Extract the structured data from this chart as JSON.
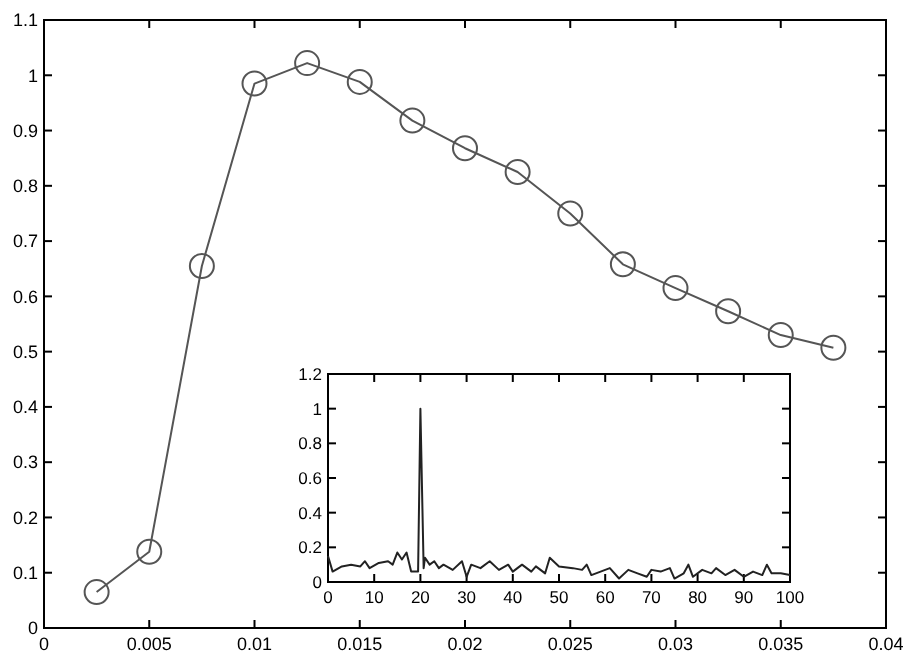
{
  "chart_data": [
    {
      "type": "line",
      "marker": "circle",
      "line_style": "solid",
      "grid": false,
      "xlim": [
        0,
        0.04
      ],
      "xticks": [
        0,
        0.005,
        0.01,
        0.015,
        0.02,
        0.025,
        0.03,
        0.035,
        0.04
      ],
      "ylim": [
        0,
        1.1
      ],
      "yticks": [
        0,
        0.1,
        0.2,
        0.3,
        0.4,
        0.5,
        0.6,
        0.7,
        0.8,
        0.9,
        1,
        1.1
      ],
      "series": [
        {
          "color": "#555555",
          "x": [
            0.0025,
            0.005,
            0.0075,
            0.01,
            0.0125,
            0.015,
            0.0175,
            0.02,
            0.0225,
            0.025,
            0.0275,
            0.03,
            0.0325,
            0.035,
            0.0375
          ],
          "values": [
            0.065,
            0.138,
            0.655,
            0.985,
            1.022,
            0.988,
            0.918,
            0.868,
            0.825,
            0.75,
            0.658,
            0.615,
            0.573,
            0.53,
            0.507
          ]
        }
      ]
    },
    {
      "type": "line",
      "marker": "none",
      "line_style": "solid",
      "grid": false,
      "xlim": [
        0,
        100
      ],
      "xticks": [
        0,
        10,
        20,
        30,
        40,
        50,
        60,
        70,
        80,
        90,
        100
      ],
      "ylim": [
        0,
        1.2
      ],
      "yticks": [
        0,
        0.2,
        0.4,
        0.6,
        0.8,
        1,
        1.2
      ],
      "series": [
        {
          "color": "#222222",
          "x": [
            0,
            1,
            3,
            5,
            7,
            8,
            9,
            11,
            13,
            14,
            15,
            16,
            17,
            18,
            19,
            19.5,
            20,
            20.7,
            21,
            22,
            23,
            24,
            25,
            27,
            29,
            30,
            31,
            33,
            35,
            37,
            39,
            40,
            42,
            44,
            45,
            47,
            48,
            50,
            53,
            55,
            56,
            57,
            59,
            61,
            63,
            65,
            67,
            69,
            70,
            72,
            74,
            75,
            77,
            78,
            79,
            81,
            83,
            84,
            86,
            88,
            90,
            92,
            94,
            95,
            96,
            98,
            100
          ],
          "values": [
            0.15,
            0.06,
            0.09,
            0.1,
            0.09,
            0.12,
            0.08,
            0.11,
            0.12,
            0.1,
            0.17,
            0.13,
            0.17,
            0.06,
            0.06,
            0.06,
            1.0,
            0.08,
            0.14,
            0.1,
            0.12,
            0.08,
            0.1,
            0.07,
            0.12,
            0.03,
            0.1,
            0.08,
            0.12,
            0.07,
            0.1,
            0.06,
            0.1,
            0.06,
            0.09,
            0.05,
            0.14,
            0.09,
            0.08,
            0.07,
            0.1,
            0.04,
            0.06,
            0.08,
            0.02,
            0.07,
            0.05,
            0.03,
            0.07,
            0.06,
            0.08,
            0.02,
            0.05,
            0.1,
            0.03,
            0.07,
            0.05,
            0.08,
            0.04,
            0.07,
            0.03,
            0.06,
            0.04,
            0.1,
            0.05,
            0.05,
            0.04
          ]
        }
      ]
    }
  ]
}
